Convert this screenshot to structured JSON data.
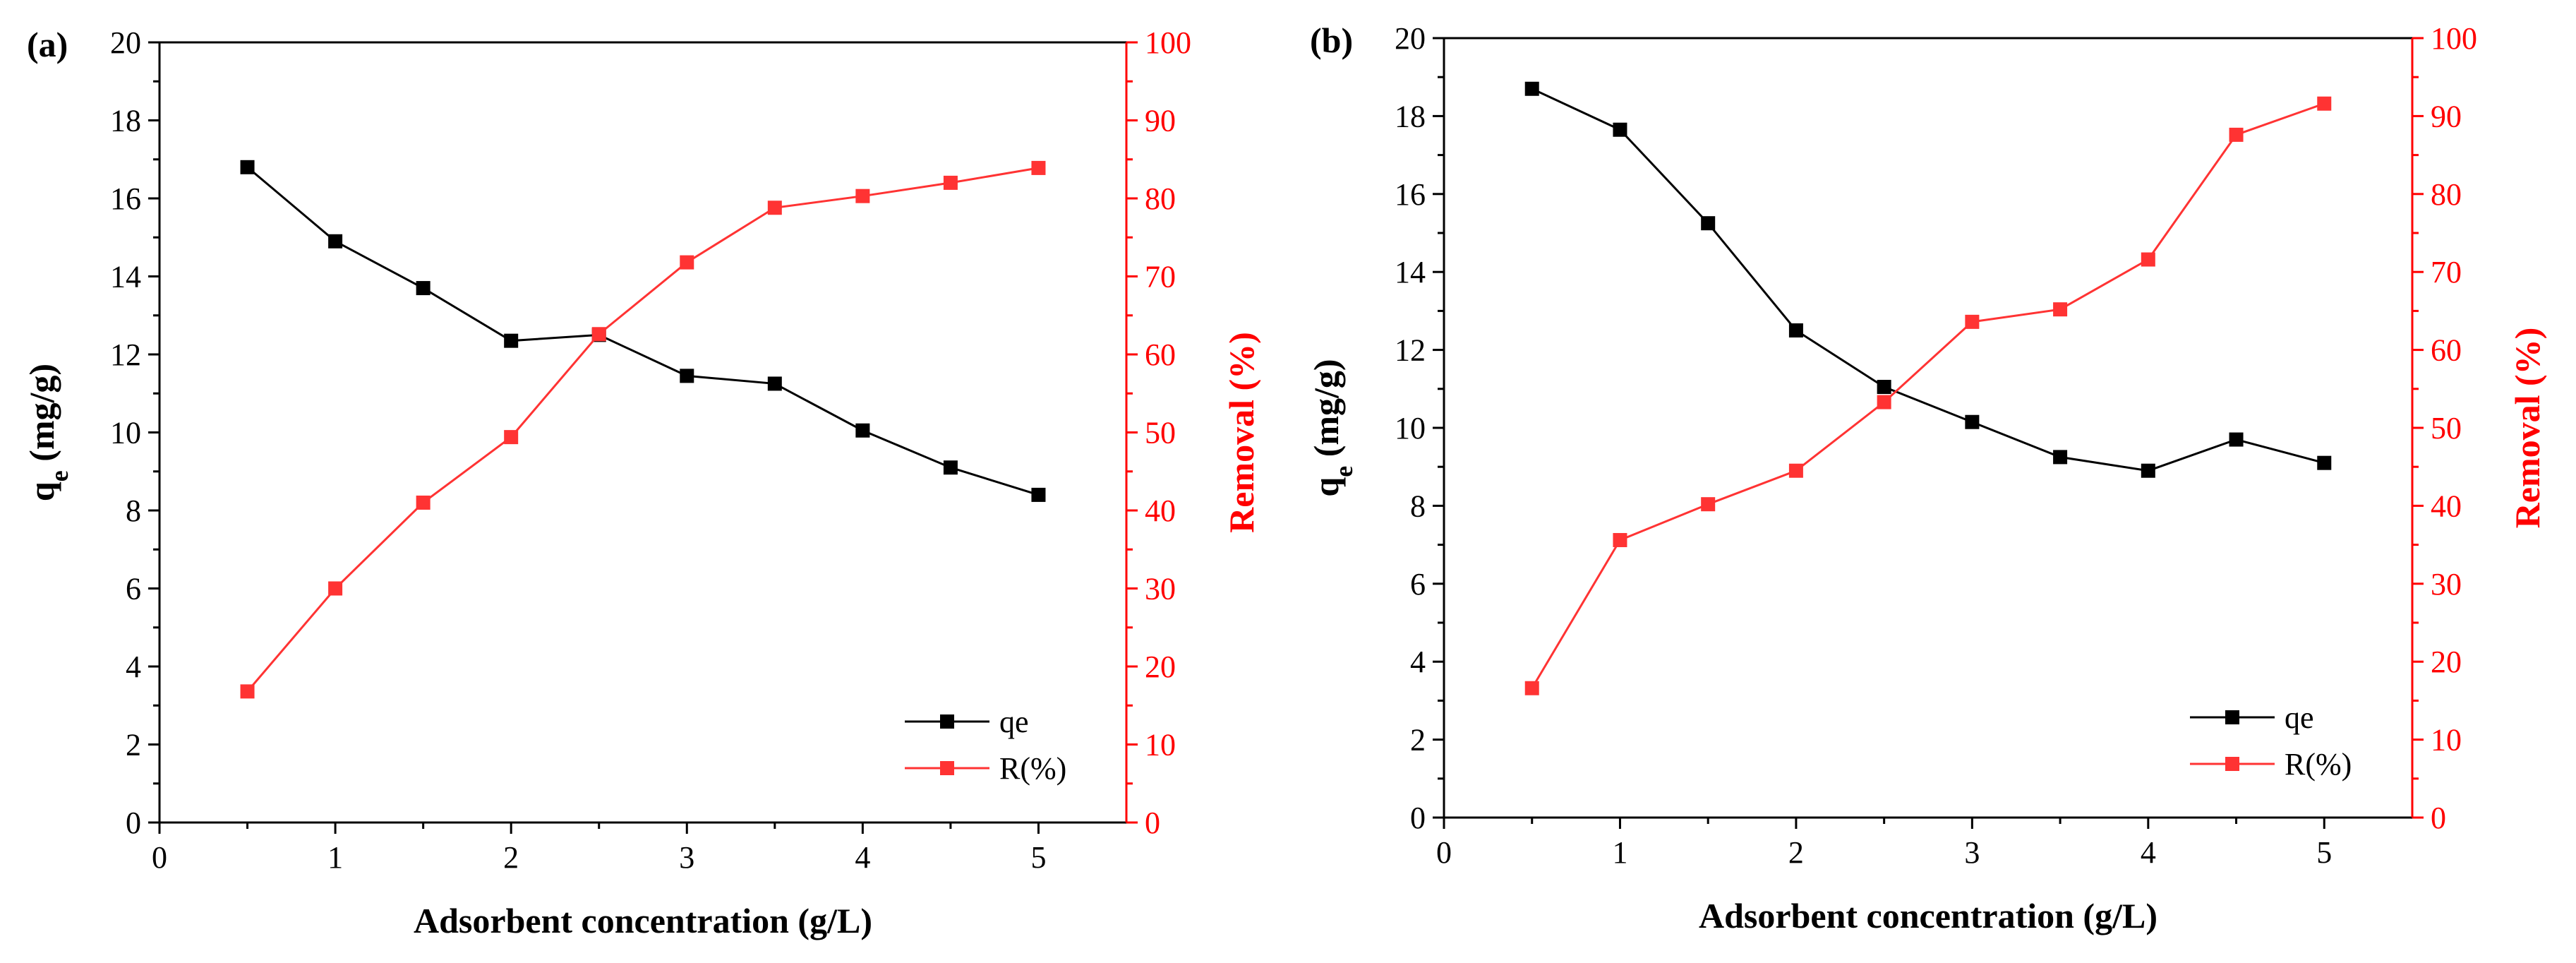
{
  "figure": {
    "colors": {
      "qe": "#000000",
      "removal": "#ff3333",
      "axis_right": "#ff0000"
    }
  },
  "chart_data": [
    {
      "type": "line",
      "panel_label": "(a)",
      "x": [
        0.5,
        1,
        1.5,
        2,
        2.5,
        3,
        3.5,
        4,
        4.5,
        5
      ],
      "xlabel": "Adsorbent concentration (g/L)",
      "xlim": [
        0,
        5.5
      ],
      "xticks": [
        "0",
        "1",
        "2",
        "3",
        "4",
        "5"
      ],
      "ylabel_left": {
        "main": "q",
        "sub": "e",
        "rest": " (mg/g)"
      },
      "ylim_left": [
        0,
        20
      ],
      "yticks_left": [
        "0",
        "2",
        "4",
        "6",
        "8",
        "10",
        "12",
        "14",
        "16",
        "18",
        "20"
      ],
      "ylabel_right": "Removal (%)",
      "ylim_right": [
        0,
        100
      ],
      "yticks_right": [
        "0",
        "10",
        "20",
        "30",
        "40",
        "50",
        "60",
        "70",
        "80",
        "90",
        "100"
      ],
      "series": [
        {
          "name": "qe",
          "axis": "left",
          "color": "#000000",
          "values": [
            16.8,
            14.9,
            13.7,
            12.35,
            12.5,
            11.45,
            11.25,
            10.05,
            9.1,
            8.4
          ]
        },
        {
          "name": "R(%)",
          "axis": "right",
          "color": "#ff3333",
          "values": [
            16.8,
            30.0,
            41.0,
            49.4,
            62.6,
            71.8,
            78.8,
            80.3,
            82.0,
            83.9
          ]
        }
      ],
      "legend": [
        "qe",
        "R(%)"
      ],
      "legend_position": "bottom-right"
    },
    {
      "type": "line",
      "panel_label": "(b)",
      "x": [
        0.5,
        1,
        1.5,
        2,
        2.5,
        3,
        3.5,
        4,
        4.5,
        5
      ],
      "xlabel": "Adsorbent concentration (g/L)",
      "xlim": [
        0,
        5.5
      ],
      "xticks": [
        "0",
        "1",
        "2",
        "3",
        "4",
        "5"
      ],
      "ylabel_left": {
        "main": "q",
        "sub": "e",
        "rest": " (mg/g)"
      },
      "ylim_left": [
        0,
        20
      ],
      "yticks_left": [
        "0",
        "2",
        "4",
        "6",
        "8",
        "10",
        "12",
        "14",
        "16",
        "18",
        "20"
      ],
      "ylabel_right": "Removal (%)",
      "ylim_right": [
        0,
        100
      ],
      "yticks_right": [
        "0",
        "10",
        "20",
        "30",
        "40",
        "50",
        "60",
        "70",
        "80",
        "90",
        "100"
      ],
      "series": [
        {
          "name": "qe",
          "axis": "left",
          "color": "#000000",
          "values": [
            18.7,
            17.65,
            15.25,
            12.5,
            11.05,
            10.15,
            9.25,
            8.9,
            9.7,
            9.1
          ]
        },
        {
          "name": "R(%)",
          "axis": "right",
          "color": "#ff3333",
          "values": [
            16.6,
            35.6,
            40.2,
            44.5,
            53.3,
            63.6,
            65.2,
            71.6,
            87.6,
            91.6
          ]
        }
      ],
      "legend": [
        "qe",
        "R(%)"
      ],
      "legend_position": "bottom-right"
    }
  ]
}
